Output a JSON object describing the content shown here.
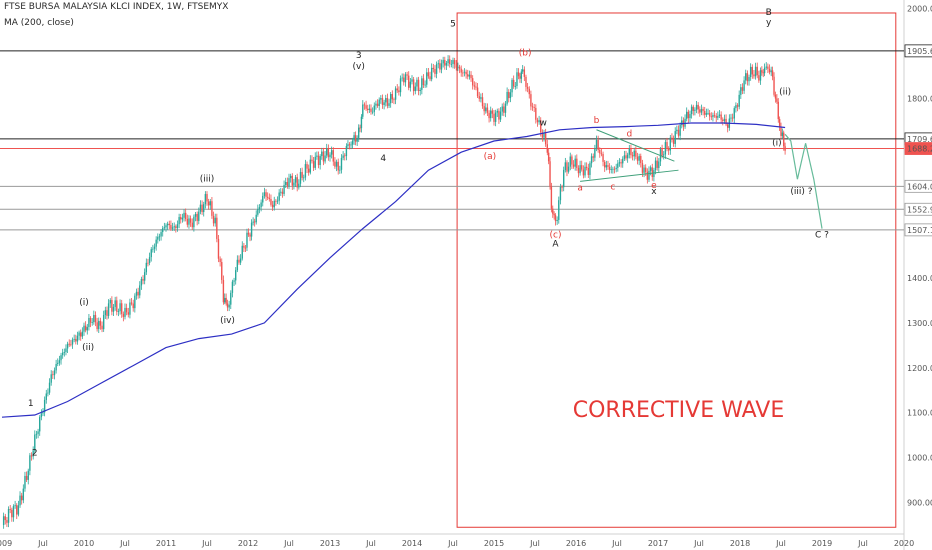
{
  "chart_data": {
    "type": "line",
    "title": "FTSE BURSA MALAYSIA KLCI INDEX, 1W, FTSEMYX",
    "indicator": "MA (200, close)",
    "annotation": "CORRECTIVE WAVE",
    "colors": {
      "up": "#26a69a",
      "down": "#ef5350",
      "ma": "#2d2fc4",
      "box": "#e53935",
      "projection": "#66bb9a",
      "triangle": "#3fa07a",
      "red_line": "#ef5350",
      "gray_line": "#999999",
      "wave_black": "#222222",
      "wave_red": "#e53935",
      "wave_green": "#3fa07a"
    },
    "ylim": [
      830,
      2010
    ],
    "xlim": [
      2009.0,
      2020.0
    ],
    "y_ticks": [
      "900.00",
      "1000.00",
      "1100.00",
      "1200.00",
      "1300.00",
      "1400.00",
      "1500.00",
      "1600.00",
      "1700.00",
      "1800.00",
      "1900.00",
      "2000.00"
    ],
    "x_ticks": [
      {
        "label": "2009",
        "x": 2009.0
      },
      {
        "label": "Jul",
        "x": 2009.5
      },
      {
        "label": "2010",
        "x": 2010.0
      },
      {
        "label": "Jul",
        "x": 2010.5
      },
      {
        "label": "2011",
        "x": 2011.0
      },
      {
        "label": "Jul",
        "x": 2011.5
      },
      {
        "label": "2012",
        "x": 2012.0
      },
      {
        "label": "Jul",
        "x": 2012.5
      },
      {
        "label": "2013",
        "x": 2013.0
      },
      {
        "label": "Jul",
        "x": 2013.5
      },
      {
        "label": "2014",
        "x": 2014.0
      },
      {
        "label": "Jul",
        "x": 2014.5
      },
      {
        "label": "2015",
        "x": 2015.0
      },
      {
        "label": "Jul",
        "x": 2015.5
      },
      {
        "label": "2016",
        "x": 2016.0
      },
      {
        "label": "Jul",
        "x": 2016.5
      },
      {
        "label": "2017",
        "x": 2017.0
      },
      {
        "label": "Jul",
        "x": 2017.5
      },
      {
        "label": "2018",
        "x": 2018.0
      },
      {
        "label": "Jul",
        "x": 2018.5
      },
      {
        "label": "2019",
        "x": 2019.0
      },
      {
        "label": "Jul",
        "x": 2019.5
      },
      {
        "label": "2020",
        "x": 2020.0
      }
    ],
    "levels": [
      {
        "label": "1905.67",
        "value": 1905.67,
        "color": "#222222",
        "bg": "#ffffff",
        "fg": "#222222"
      },
      {
        "label": "1709.67",
        "value": 1709.67,
        "color": "#222222",
        "bg": "#ffffff",
        "fg": "#222222"
      },
      {
        "label": "1688.21",
        "value": 1688.21,
        "color": "#ef5350",
        "bg": "#ef5350",
        "fg": "#ffffff"
      },
      {
        "label": "1604.07",
        "value": 1604.07,
        "color": "#999999",
        "bg": "#ffffff",
        "fg": "#222222"
      },
      {
        "label": "1552.96",
        "value": 1552.96,
        "color": "#999999",
        "bg": "#ffffff",
        "fg": "#222222"
      },
      {
        "label": "1507.12",
        "value": 1507.12,
        "color": "#999999",
        "bg": "#ffffff",
        "fg": "#222222"
      }
    ],
    "price_path": [
      [
        2009.0,
        850
      ],
      [
        2009.1,
        880
      ],
      [
        2009.2,
        890
      ],
      [
        2009.3,
        960
      ],
      [
        2009.4,
        1040
      ],
      [
        2009.5,
        1110
      ],
      [
        2009.6,
        1180
      ],
      [
        2009.7,
        1220
      ],
      [
        2009.8,
        1250
      ],
      [
        2009.9,
        1265
      ],
      [
        2010.0,
        1285
      ],
      [
        2010.1,
        1310
      ],
      [
        2010.2,
        1290
      ],
      [
        2010.3,
        1340
      ],
      [
        2010.4,
        1335
      ],
      [
        2010.5,
        1320
      ],
      [
        2010.6,
        1345
      ],
      [
        2010.7,
        1390
      ],
      [
        2010.8,
        1450
      ],
      [
        2010.9,
        1490
      ],
      [
        2011.0,
        1520
      ],
      [
        2011.1,
        1510
      ],
      [
        2011.2,
        1540
      ],
      [
        2011.3,
        1520
      ],
      [
        2011.4,
        1545
      ],
      [
        2011.5,
        1580
      ],
      [
        2011.6,
        1520
      ],
      [
        2011.7,
        1360
      ],
      [
        2011.75,
        1330
      ],
      [
        2011.85,
        1420
      ],
      [
        2011.95,
        1470
      ],
      [
        2012.1,
        1540
      ],
      [
        2012.2,
        1590
      ],
      [
        2012.3,
        1560
      ],
      [
        2012.4,
        1590
      ],
      [
        2012.5,
        1620
      ],
      [
        2012.6,
        1610
      ],
      [
        2012.7,
        1640
      ],
      [
        2012.8,
        1660
      ],
      [
        2012.9,
        1670
      ],
      [
        2013.0,
        1680
      ],
      [
        2013.1,
        1640
      ],
      [
        2013.2,
        1690
      ],
      [
        2013.35,
        1720
      ],
      [
        2013.4,
        1785
      ],
      [
        2013.5,
        1770
      ],
      [
        2013.6,
        1795
      ],
      [
        2013.7,
        1790
      ],
      [
        2013.8,
        1810
      ],
      [
        2013.9,
        1850
      ],
      [
        2014.0,
        1830
      ],
      [
        2014.1,
        1825
      ],
      [
        2014.2,
        1850
      ],
      [
        2014.3,
        1870
      ],
      [
        2014.4,
        1880
      ],
      [
        2014.5,
        1880
      ],
      [
        2014.6,
        1860
      ],
      [
        2014.7,
        1850
      ],
      [
        2014.8,
        1810
      ],
      [
        2014.9,
        1770
      ],
      [
        2015.0,
        1760
      ],
      [
        2015.1,
        1770
      ],
      [
        2015.2,
        1820
      ],
      [
        2015.3,
        1850
      ],
      [
        2015.35,
        1860
      ],
      [
        2015.45,
        1790
      ],
      [
        2015.55,
        1740
      ],
      [
        2015.65,
        1690
      ],
      [
        2015.7,
        1560
      ],
      [
        2015.75,
        1520
      ],
      [
        2015.85,
        1640
      ],
      [
        2015.95,
        1660
      ],
      [
        2016.05,
        1640
      ],
      [
        2016.15,
        1640
      ],
      [
        2016.25,
        1700
      ],
      [
        2016.35,
        1650
      ],
      [
        2016.45,
        1640
      ],
      [
        2016.55,
        1660
      ],
      [
        2016.65,
        1680
      ],
      [
        2016.75,
        1670
      ],
      [
        2016.85,
        1630
      ],
      [
        2016.95,
        1640
      ],
      [
        2017.05,
        1680
      ],
      [
        2017.15,
        1700
      ],
      [
        2017.25,
        1730
      ],
      [
        2017.35,
        1760
      ],
      [
        2017.45,
        1780
      ],
      [
        2017.55,
        1770
      ],
      [
        2017.65,
        1760
      ],
      [
        2017.75,
        1760
      ],
      [
        2017.85,
        1740
      ],
      [
        2017.95,
        1780
      ],
      [
        2018.05,
        1840
      ],
      [
        2018.15,
        1860
      ],
      [
        2018.25,
        1850
      ],
      [
        2018.3,
        1870
      ],
      [
        2018.38,
        1860
      ],
      [
        2018.45,
        1780
      ],
      [
        2018.5,
        1720
      ],
      [
        2018.55,
        1690
      ]
    ],
    "ma_path": [
      [
        2009.0,
        1090
      ],
      [
        2009.4,
        1095
      ],
      [
        2009.8,
        1125
      ],
      [
        2010.2,
        1165
      ],
      [
        2010.6,
        1205
      ],
      [
        2011.0,
        1245
      ],
      [
        2011.4,
        1265
      ],
      [
        2011.8,
        1275
      ],
      [
        2012.2,
        1300
      ],
      [
        2012.6,
        1375
      ],
      [
        2013.0,
        1445
      ],
      [
        2013.4,
        1510
      ],
      [
        2013.8,
        1570
      ],
      [
        2014.2,
        1640
      ],
      [
        2014.6,
        1680
      ],
      [
        2015.0,
        1705
      ],
      [
        2015.4,
        1715
      ],
      [
        2015.8,
        1730
      ],
      [
        2016.2,
        1735
      ],
      [
        2016.6,
        1737
      ],
      [
        2017.0,
        1740
      ],
      [
        2017.4,
        1745
      ],
      [
        2017.8,
        1745
      ],
      [
        2018.2,
        1742
      ],
      [
        2018.55,
        1735
      ]
    ],
    "projection_path": [
      [
        2018.55,
        1720
      ],
      [
        2018.62,
        1705
      ],
      [
        2018.7,
        1620
      ],
      [
        2018.8,
        1700
      ],
      [
        2018.9,
        1620
      ],
      [
        2019.0,
        1510
      ]
    ],
    "triangle_upper": [
      [
        2016.25,
        1730
      ],
      [
        2017.2,
        1660
      ]
    ],
    "triangle_lower": [
      [
        2016.05,
        1615
      ],
      [
        2017.25,
        1640
      ]
    ],
    "box": {
      "x0": 2014.55,
      "x1": 2019.9,
      "y0": 845,
      "y1": 1990
    },
    "wave_labels": [
      {
        "text": "1",
        "x": 2009.35,
        "y": 1115,
        "color": "wave_black"
      },
      {
        "text": "2",
        "x": 2009.4,
        "y": 1005,
        "color": "wave_black"
      },
      {
        "text": "(i)",
        "x": 2010.0,
        "y": 1340,
        "color": "wave_black"
      },
      {
        "text": "(ii)",
        "x": 2010.05,
        "y": 1240,
        "color": "wave_black"
      },
      {
        "text": "(iii)",
        "x": 2011.5,
        "y": 1615,
        "color": "wave_black"
      },
      {
        "text": "(iv)",
        "x": 2011.75,
        "y": 1300,
        "color": "wave_black"
      },
      {
        "text": "3",
        "x": 2013.35,
        "y": 1890,
        "color": "wave_black"
      },
      {
        "text": "(v)",
        "x": 2013.35,
        "y": 1865,
        "color": "wave_black"
      },
      {
        "text": "4",
        "x": 2013.65,
        "y": 1660,
        "color": "wave_black"
      },
      {
        "text": "5",
        "x": 2014.5,
        "y": 1960,
        "color": "wave_black"
      },
      {
        "text": "(b)",
        "x": 2015.38,
        "y": 1895,
        "color": "wave_red"
      },
      {
        "text": "(a)",
        "x": 2014.95,
        "y": 1665,
        "color": "wave_red"
      },
      {
        "text": "w",
        "x": 2015.6,
        "y": 1740,
        "color": "wave_black"
      },
      {
        "text": "b",
        "x": 2016.25,
        "y": 1745,
        "color": "wave_red"
      },
      {
        "text": "d",
        "x": 2016.65,
        "y": 1715,
        "color": "wave_red"
      },
      {
        "text": "a",
        "x": 2016.05,
        "y": 1595,
        "color": "wave_red"
      },
      {
        "text": "c",
        "x": 2016.45,
        "y": 1597,
        "color": "wave_red"
      },
      {
        "text": "e",
        "x": 2016.95,
        "y": 1600,
        "color": "wave_red"
      },
      {
        "text": "x",
        "x": 2016.95,
        "y": 1587,
        "color": "wave_black"
      },
      {
        "text": "(c)",
        "x": 2015.75,
        "y": 1490,
        "color": "wave_red"
      },
      {
        "text": "A",
        "x": 2015.75,
        "y": 1470,
        "color": "wave_black"
      },
      {
        "text": "B",
        "x": 2018.35,
        "y": 1985,
        "color": "wave_black"
      },
      {
        "text": "y",
        "x": 2018.35,
        "y": 1963,
        "color": "wave_black"
      },
      {
        "text": "(ii)",
        "x": 2018.55,
        "y": 1808,
        "color": "wave_black"
      },
      {
        "text": "(i)",
        "x": 2018.45,
        "y": 1695,
        "color": "wave_black"
      },
      {
        "text": "(iii) ?",
        "x": 2018.75,
        "y": 1587,
        "color": "wave_black"
      },
      {
        "text": "C ?",
        "x": 2019.0,
        "y": 1490,
        "color": "wave_black"
      }
    ]
  }
}
